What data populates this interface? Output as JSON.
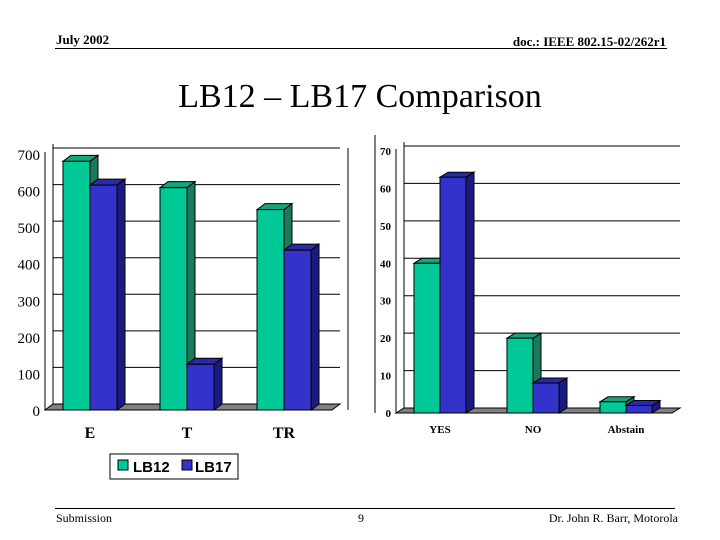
{
  "header": {
    "date": "July 2002",
    "doc_id": "doc.: IEEE 802.15-02/262r1"
  },
  "title": "LB12 – LB17 Comparison",
  "footer": {
    "left": "Submission",
    "page": "9",
    "author": "Dr. John R. Barr, Motorola"
  },
  "colors": {
    "lb12": "#00c896",
    "lb12_side": "#1a7a5c",
    "lb17": "#3333cc",
    "lb17_side": "#1a1a80",
    "floor": "#808080"
  },
  "chart_data": [
    {
      "type": "bar",
      "categories": [
        "E",
        "T",
        "TR"
      ],
      "series": [
        {
          "name": "LB12",
          "values": [
            680,
            608,
            548
          ]
        },
        {
          "name": "LB17",
          "values": [
            615,
            125,
            437
          ]
        }
      ],
      "ylim": [
        0,
        700
      ],
      "yticks": [
        "0",
        "100",
        "200",
        "300",
        "400",
        "500",
        "600",
        "700"
      ],
      "grid": true,
      "legend": "bottom",
      "legend_labels": [
        "LB12",
        "LB17"
      ]
    },
    {
      "type": "bar",
      "categories": [
        "YES",
        "NO",
        "Abstain"
      ],
      "series": [
        {
          "name": "LB12",
          "values": [
            40,
            20,
            3
          ]
        },
        {
          "name": "LB17",
          "values": [
            63,
            8,
            2
          ]
        }
      ],
      "ylim": [
        0,
        70
      ],
      "yticks": [
        "0",
        "10",
        "20",
        "30",
        "40",
        "50",
        "60",
        "70"
      ],
      "grid": true
    }
  ]
}
